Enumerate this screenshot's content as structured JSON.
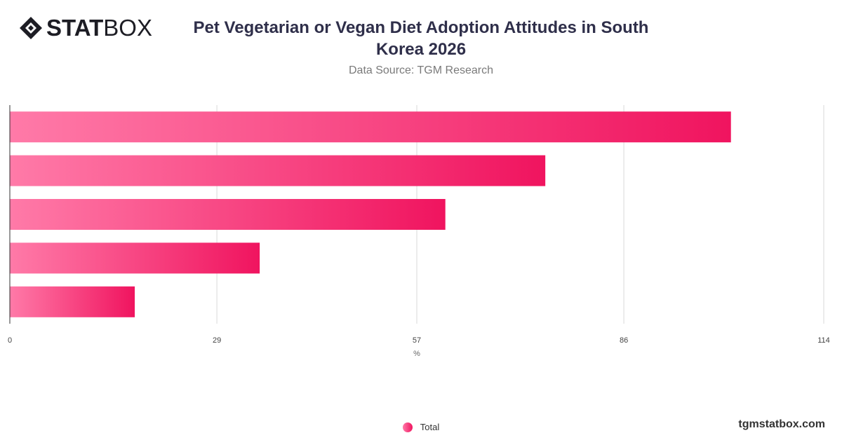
{
  "brand": {
    "logo_bold": "STAT",
    "logo_light": "BOX",
    "logo_icon": "diamond-logo-icon",
    "site": "tgmstatbox.com"
  },
  "header": {
    "title": "Pet Vegetarian or Vegan Diet Adoption Attitudes in South Korea 2026",
    "subtitle": "Data Source: TGM Research"
  },
  "colors": {
    "bar_start": "#ff7aa8",
    "bar_end": "#f0145f",
    "grid": "#d9d9d9",
    "axis": "#333333"
  },
  "chart_data": {
    "type": "bar",
    "orientation": "horizontal",
    "categories": [
      "",
      "",
      "",
      "",
      ""
    ],
    "series": [
      {
        "name": "Total",
        "values": [
          101,
          75,
          61,
          35,
          17.5
        ]
      }
    ],
    "xlabel": "%",
    "xlim": [
      0,
      114
    ],
    "xticks": [
      "0",
      "29",
      "57",
      "86",
      "114"
    ],
    "grid": true,
    "legend": "bottom-center"
  }
}
